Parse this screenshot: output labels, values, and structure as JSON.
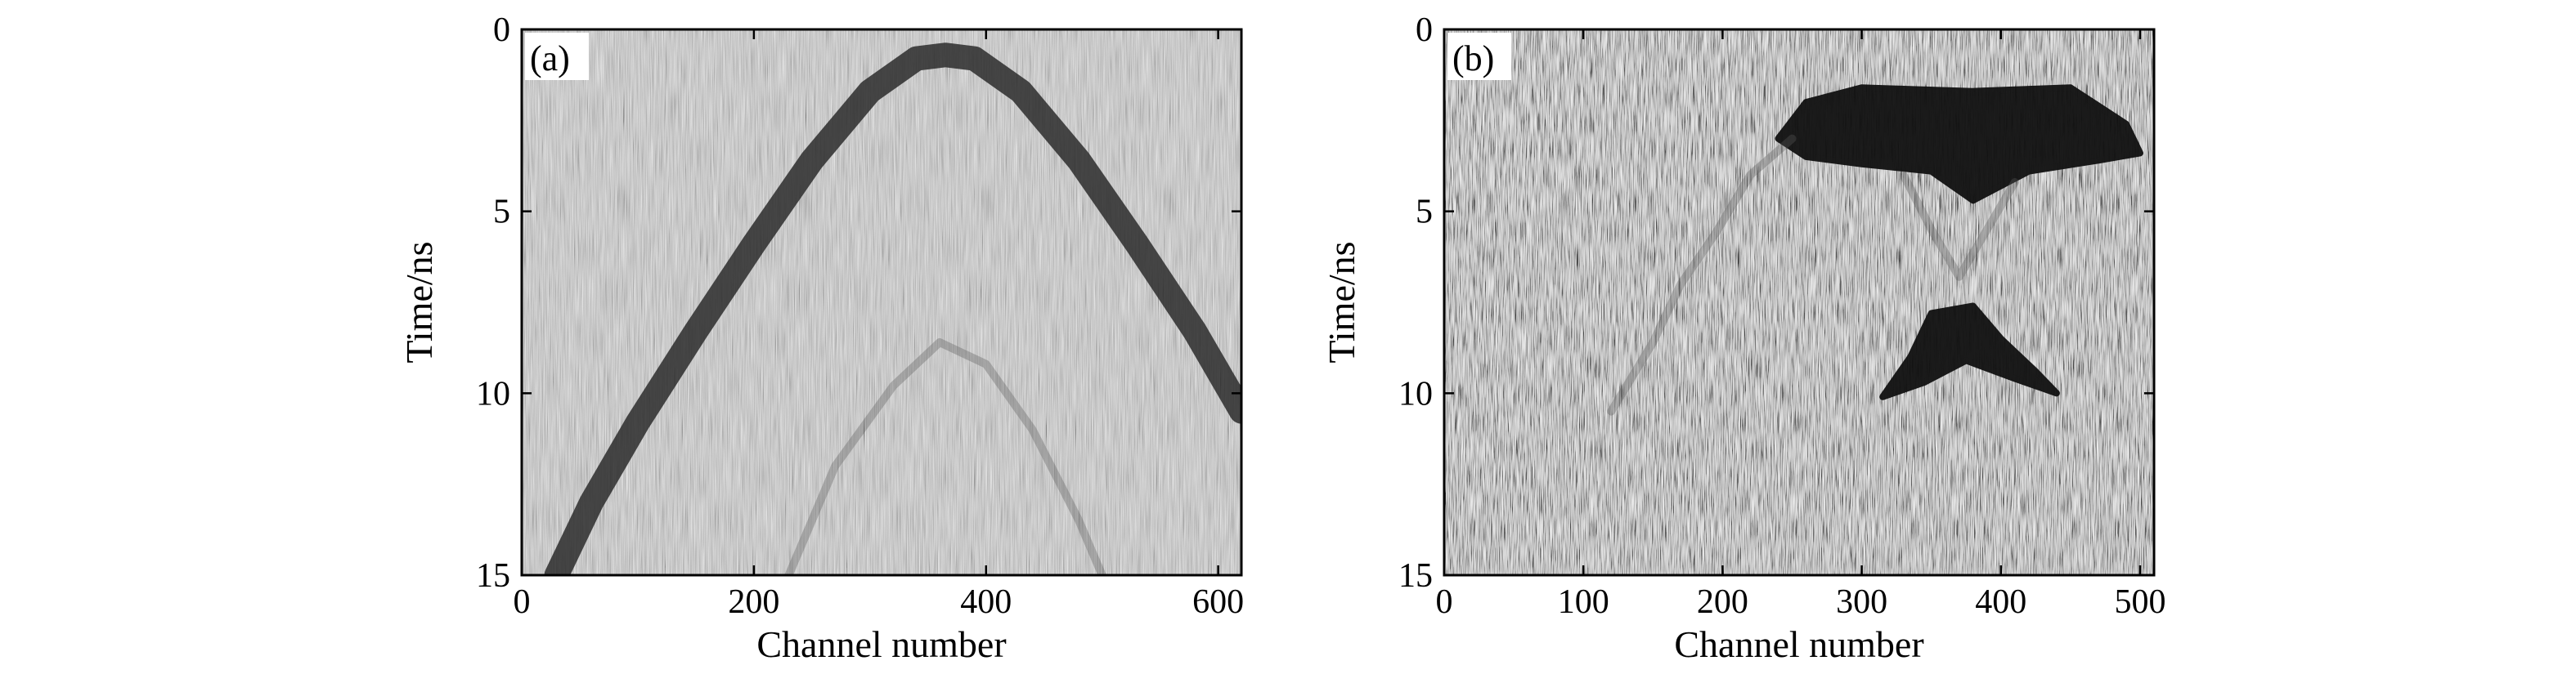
{
  "chart_data": [
    {
      "type": "heatmap",
      "panel_label": "(a)",
      "xlabel": "Channel number",
      "ylabel": "Time/ns",
      "xlim": [
        0,
        620
      ],
      "ylim": [
        15,
        0
      ],
      "xticks": [
        0,
        200,
        400,
        600
      ],
      "yticks": [
        0,
        5,
        10,
        15
      ],
      "colormap": "grayscale",
      "features": [
        {
          "kind": "hyperbola",
          "description_role": "strong reflection",
          "points": [
            [
              30,
              15.0
            ],
            [
              60,
              13.0
            ],
            [
              100,
              10.8
            ],
            [
              150,
              8.3
            ],
            [
              200,
              5.9
            ],
            [
              250,
              3.6
            ],
            [
              300,
              1.7
            ],
            [
              340,
              0.8
            ],
            [
              365,
              0.7
            ],
            [
              390,
              0.8
            ],
            [
              430,
              1.7
            ],
            [
              480,
              3.6
            ],
            [
              530,
              5.9
            ],
            [
              580,
              8.3
            ],
            [
              620,
              10.5
            ]
          ]
        },
        {
          "kind": "hyperbola",
          "description_role": "faint reflection",
          "points": [
            [
              230,
              15.0
            ],
            [
              270,
              12.0
            ],
            [
              320,
              9.8
            ],
            [
              360,
              8.6
            ],
            [
              400,
              9.2
            ],
            [
              440,
              11.0
            ],
            [
              480,
              13.5
            ],
            [
              500,
              15.0
            ]
          ]
        }
      ]
    },
    {
      "type": "heatmap",
      "panel_label": "(b)",
      "xlabel": "Channel number",
      "ylabel": "Time/ns",
      "xlim": [
        0,
        510
      ],
      "ylim": [
        15,
        0
      ],
      "xticks": [
        0,
        100,
        200,
        300,
        400,
        500
      ],
      "yticks": [
        0,
        5,
        10,
        15
      ],
      "colormap": "grayscale",
      "features": [
        {
          "kind": "blob",
          "description_role": "upper dark region",
          "outline": [
            [
              240,
              3.0
            ],
            [
              260,
              2.0
            ],
            [
              300,
              1.6
            ],
            [
              380,
              1.7
            ],
            [
              450,
              1.6
            ],
            [
              490,
              2.6
            ],
            [
              500,
              3.4
            ],
            [
              470,
              3.6
            ],
            [
              420,
              3.9
            ],
            [
              380,
              4.7
            ],
            [
              350,
              3.9
            ],
            [
              300,
              3.7
            ],
            [
              260,
              3.5
            ]
          ]
        },
        {
          "kind": "blob",
          "description_role": "lower dark region",
          "outline": [
            [
              350,
              7.8
            ],
            [
              380,
              7.6
            ],
            [
              400,
              8.5
            ],
            [
              425,
              9.4
            ],
            [
              440,
              10.0
            ],
            [
              410,
              9.6
            ],
            [
              375,
              9.1
            ],
            [
              345,
              9.7
            ],
            [
              315,
              10.1
            ],
            [
              335,
              9.0
            ]
          ]
        },
        {
          "kind": "curve",
          "description_role": "faint left limb",
          "points": [
            [
              120,
              10.5
            ],
            [
              150,
              8.6
            ],
            [
              170,
              7.0
            ],
            [
              195,
              5.6
            ],
            [
              220,
              4.0
            ],
            [
              250,
              3.0
            ]
          ]
        },
        {
          "kind": "curve",
          "description_role": "faint central crossing",
          "points": [
            [
              330,
              4.0
            ],
            [
              350,
              5.5
            ],
            [
              370,
              6.8
            ],
            [
              390,
              5.5
            ],
            [
              410,
              4.2
            ]
          ]
        }
      ]
    }
  ]
}
